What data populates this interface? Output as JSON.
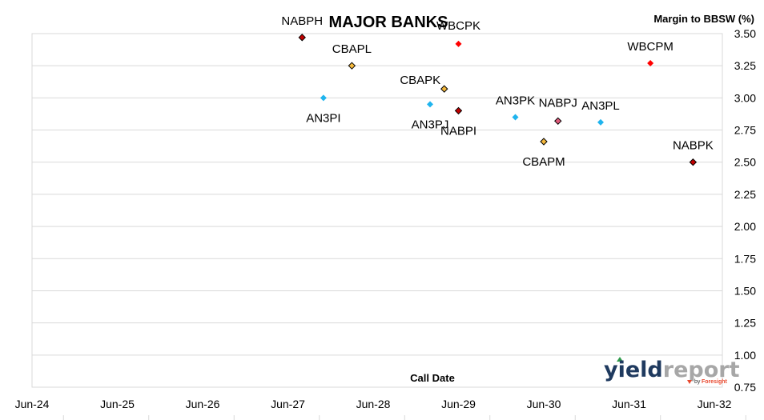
{
  "chart_data": {
    "type": "scatter",
    "title": "MAJOR BANKS",
    "ylabel": "Margin to BBSW (%)",
    "xlabel": "Call Date",
    "ylim": [
      0.75,
      3.5
    ],
    "y_ticks": [
      "3.50",
      "3.25",
      "3.00",
      "2.75",
      "2.50",
      "2.25",
      "2.00",
      "1.75",
      "1.50",
      "1.25",
      "1.00",
      "0.75"
    ],
    "x_ticks": [
      "Jun-24",
      "Jun-25",
      "Jun-26",
      "Jun-27",
      "Jun-28",
      "Jun-29",
      "Jun-30",
      "Jun-31",
      "Jun-32"
    ],
    "grid": "horizontal",
    "points": [
      {
        "label": "NABPH",
        "x": "2027-09",
        "y": 3.47,
        "color": "#c00000"
      },
      {
        "label": "CBAPL",
        "x": "2028-04",
        "y": 3.25,
        "color": "#f5b93c"
      },
      {
        "label": "AN3PI",
        "x": "2027-12",
        "y": 3.0,
        "color": "#1fb4ee"
      },
      {
        "label": "WBCPK",
        "x": "2029-07",
        "y": 3.42,
        "color": "#ff0000"
      },
      {
        "label": "CBAPK",
        "x": "2029-05",
        "y": 3.07,
        "color": "#f5b93c"
      },
      {
        "label": "AN3PJ",
        "x": "2029-03",
        "y": 2.95,
        "color": "#1fb4ee"
      },
      {
        "label": "NABPI",
        "x": "2029-07",
        "y": 2.9,
        "color": "#c00000"
      },
      {
        "label": "AN3PK",
        "x": "2030-03",
        "y": 2.85,
        "color": "#1fb4ee"
      },
      {
        "label": "NABPJ",
        "x": "2030-09",
        "y": 2.82,
        "color": "#e05a7a"
      },
      {
        "label": "CBAPM",
        "x": "2030-07",
        "y": 2.66,
        "color": "#f5b93c"
      },
      {
        "label": "AN3PL",
        "x": "2031-03",
        "y": 2.81,
        "color": "#1fb4ee"
      },
      {
        "label": "WBCPM",
        "x": "2031-10",
        "y": 3.27,
        "color": "#ff0000"
      },
      {
        "label": "NABPK",
        "x": "2032-04",
        "y": 2.5,
        "color": "#c00000"
      }
    ]
  },
  "logo": {
    "main1": "yield",
    "main2": "report",
    "by": "by",
    "brand": "Foresight"
  }
}
